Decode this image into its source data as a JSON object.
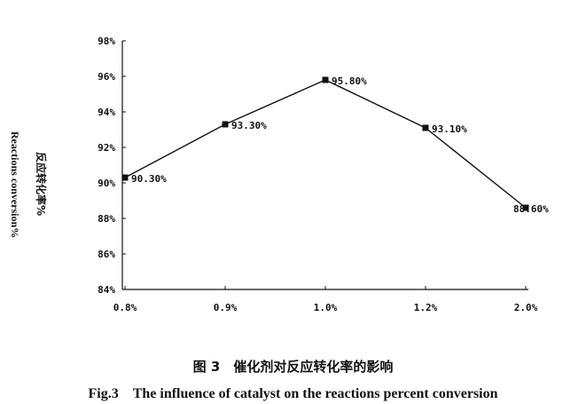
{
  "chart_data": {
    "type": "line",
    "categories": [
      "0.8%",
      "0.9%",
      "1.0%",
      "1.2%",
      "2.0%"
    ],
    "series": [
      {
        "values": [
          90.3,
          93.3,
          95.8,
          93.1,
          88.6
        ],
        "labels": [
          "90.30%",
          "93.30%",
          "95.80%",
          "93.10%",
          "88.60%"
        ]
      }
    ],
    "ylabel_cn": "反应转化率%",
    "ylabel_en": "Reactions conversion%",
    "ylim": [
      84,
      98
    ],
    "yticks": [
      84,
      86,
      88,
      90,
      92,
      94,
      96,
      98
    ],
    "ytick_labels": [
      "84%",
      "86%",
      "88%",
      "90%",
      "92%",
      "94%",
      "96%",
      "98%"
    ],
    "grid": false,
    "line_color": "#111111",
    "marker": "square"
  },
  "caption": {
    "cn": "图 3　催化剂对反应转化率的影响",
    "en": "Fig.3　The influence of catalyst on the reactions percent conversion"
  }
}
